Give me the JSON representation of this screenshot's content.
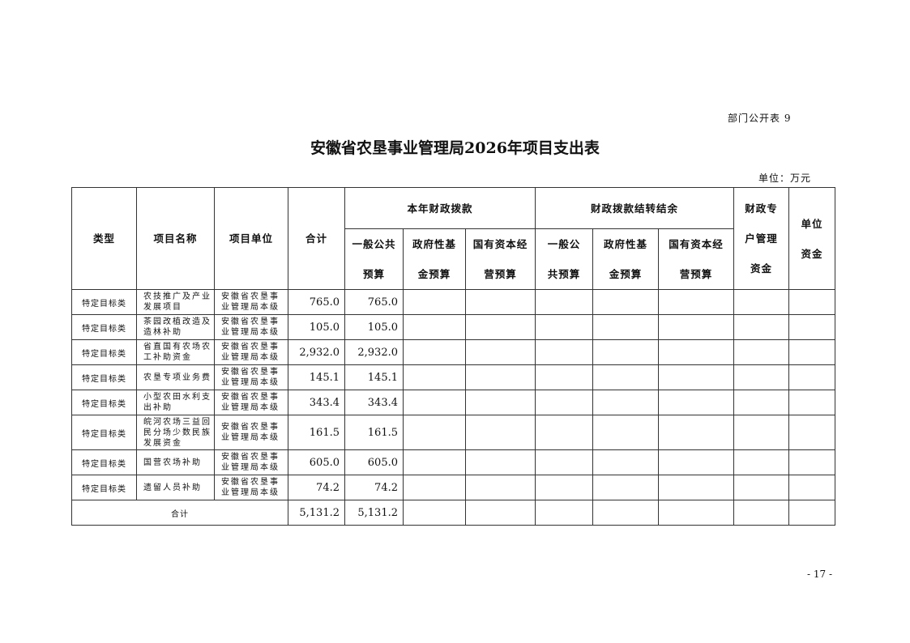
{
  "corner_label": "部门公开表 9",
  "title": "安徽省农垦事业管理局2026年项目支出表",
  "unit": "单位：万元",
  "headers": {
    "type": "类型",
    "name": "项目名称",
    "unit": "项目单位",
    "total": "合计",
    "group1": "本年财政拨款",
    "group2": "财政拨款结转结余",
    "special": "财政专户管理资金",
    "own": "单位资金",
    "g1_general": "一般公共预算",
    "g1_fund": "政府性基金预算",
    "g1_state": "国有资本经营预算",
    "g2_general": "一般公共预算",
    "g2_fund": "政府性基金预算",
    "g2_state": "国有资本经营预算"
  },
  "rows": [
    {
      "type": "特定目标类",
      "name": "农技推广及产业发展项目",
      "unit": "安徽省农垦事业管理局本级",
      "total": "765.0",
      "general": "765.0"
    },
    {
      "type": "特定目标类",
      "name": "茶园改植改造及造林补助",
      "unit": "安徽省农垦事业管理局本级",
      "total": "105.0",
      "general": "105.0"
    },
    {
      "type": "特定目标类",
      "name": "省直国有农场农工补助资金",
      "unit": "安徽省农垦事业管理局本级",
      "total": "2,932.0",
      "general": "2,932.0"
    },
    {
      "type": "特定目标类",
      "name": "农垦专项业务费",
      "unit": "安徽省农垦事业管理局本级",
      "total": "145.1",
      "general": "145.1"
    },
    {
      "type": "特定目标类",
      "name": "小型农田水利支出补助",
      "unit": "安徽省农垦事业管理局本级",
      "total": "343.4",
      "general": "343.4"
    },
    {
      "type": "特定目标类",
      "name": "皖河农场三益回民分场少数民族发展资金",
      "unit": "安徽省农垦事业管理局本级",
      "total": "161.5",
      "general": "161.5"
    },
    {
      "type": "特定目标类",
      "name": "国营农场补助",
      "unit": "安徽省农垦事业管理局本级",
      "total": "605.0",
      "general": "605.0"
    },
    {
      "type": "特定目标类",
      "name": "遗留人员补助",
      "unit": "安徽省农垦事业管理局本级",
      "total": "74.2",
      "general": "74.2"
    }
  ],
  "sum": {
    "label": "合计",
    "total": "5,131.2",
    "general": "5,131.2"
  },
  "page_number": "- 17 -"
}
